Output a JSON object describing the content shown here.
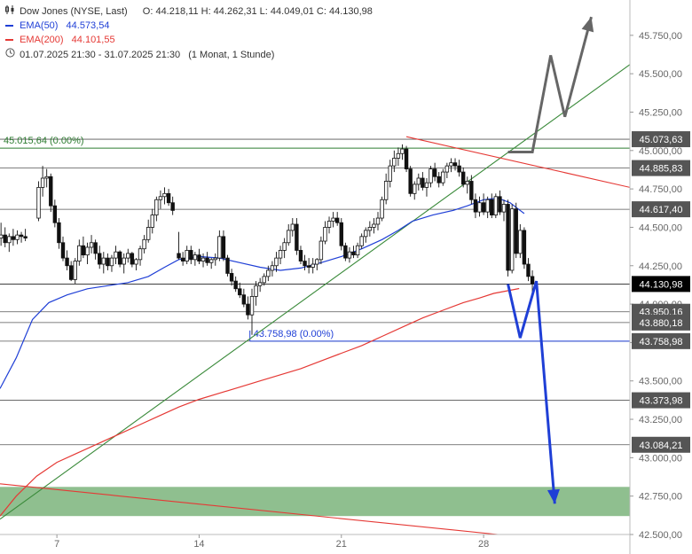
{
  "header": {
    "title": "Dow Jones (NYSE, Last)",
    "ohlc": "O: 44.218,11   H: 44.262,31   L: 44.049,01   C: 44.130,98",
    "ema50_label": "EMA(50)",
    "ema50_value": "44.573,54",
    "ema200_label": "EMA(200)",
    "ema200_value": "44.101,55",
    "range": "01.07.2025 21:30 - 31.07.2025 21:30",
    "interval": "(1 Monat, 1 Stunde)"
  },
  "chart_data": {
    "type": "candlestick",
    "ylim": [
      42500,
      45980
    ],
    "xlim_days": [
      4.2,
      35.2
    ],
    "x_ticks": [
      {
        "day": 7,
        "label": "7"
      },
      {
        "day": 14,
        "label": "14"
      },
      {
        "day": 21,
        "label": "21"
      },
      {
        "day": 28,
        "label": "28"
      }
    ],
    "y_ticks": [
      {
        "value": 42500,
        "label": "42.500,00"
      },
      {
        "value": 42750,
        "label": "42.750,00"
      },
      {
        "value": 43000,
        "label": "43.000,00"
      },
      {
        "value": 43250,
        "label": "43.250,00"
      },
      {
        "value": 43500,
        "label": "43.500,00"
      },
      {
        "value": 43750,
        "label": "43.750,00"
      },
      {
        "value": 44000,
        "label": "44.000,00"
      },
      {
        "value": 44250,
        "label": "44.250,00"
      },
      {
        "value": 44500,
        "label": "44.500,00"
      },
      {
        "value": 44750,
        "label": "44.750,00"
      },
      {
        "value": 45000,
        "label": "45.000,00"
      },
      {
        "value": 45250,
        "label": "45.250,00"
      },
      {
        "value": 45500,
        "label": "45.500,00"
      },
      {
        "value": 45750,
        "label": "45.750,00"
      }
    ],
    "levels": [
      {
        "value": 45073.63,
        "label": "45.073,63",
        "color": "#555555"
      },
      {
        "value": 44885.83,
        "label": "44.885,83",
        "color": "#555555"
      },
      {
        "value": 44617.4,
        "label": "44.617,40",
        "color": "#555555"
      },
      {
        "value": 44130.98,
        "label": "44.130,98",
        "color": "#000000",
        "current": true
      },
      {
        "value": 43950.16,
        "label": "43.950,16",
        "color": "#555555"
      },
      {
        "value": 43880.18,
        "label": "43.880,18",
        "color": "#555555"
      },
      {
        "value": 43758.98,
        "label": "43.758,98",
        "color": "#555555"
      },
      {
        "value": 43373.98,
        "label": "43.373,98",
        "color": "#555555"
      },
      {
        "value": 43084.21,
        "label": "43.084,21",
        "color": "#555555"
      }
    ],
    "annotations": [
      {
        "text": "45.015,64 (0.00%)",
        "value": 45015.64,
        "color": "#2e7d32",
        "day_start": 4.2
      },
      {
        "text": "43.758,98 (0.00%)",
        "value": 43758.98,
        "color": "#1f3fd6",
        "day_start": 16.5
      }
    ],
    "support_zone": {
      "low": 42620,
      "high": 42810,
      "color": "#8fbf8f"
    },
    "trendlines": [
      {
        "name": "uptrend",
        "color": "#3a8a3a",
        "points": [
          [
            4.2,
            42600
          ],
          [
            35.2,
            45560
          ]
        ]
      },
      {
        "name": "upper-downtrend",
        "color": "#e53935",
        "points": [
          [
            24.2,
            45090
          ],
          [
            35.2,
            44760
          ]
        ]
      },
      {
        "name": "lower-downtrend",
        "color": "#e53935",
        "points": [
          [
            4.2,
            42830
          ],
          [
            28.7,
            42500
          ]
        ]
      }
    ],
    "scenario_up": {
      "color": "#666666",
      "points": [
        [
          29.2,
          44990
        ],
        [
          30.4,
          44990
        ],
        [
          31.3,
          45620
        ],
        [
          32.0,
          45220
        ],
        [
          33.3,
          45870
        ]
      ]
    },
    "scenario_down": {
      "color": "#1f3fd6",
      "points": [
        [
          29.2,
          44130
        ],
        [
          29.8,
          43780
        ],
        [
          30.6,
          44150
        ],
        [
          31.5,
          42700
        ]
      ]
    },
    "ema50": [
      [
        4.2,
        43450
      ],
      [
        5.0,
        43650
      ],
      [
        5.8,
        43900
      ],
      [
        6.6,
        44010
      ],
      [
        7.5,
        44060
      ],
      [
        8.5,
        44100
      ],
      [
        9.5,
        44120
      ],
      [
        10.5,
        44140
      ],
      [
        11.5,
        44180
      ],
      [
        12.3,
        44240
      ],
      [
        13.0,
        44290
      ],
      [
        14.0,
        44310
      ],
      [
        15.0,
        44300
      ],
      [
        16.0,
        44270
      ],
      [
        17.0,
        44240
      ],
      [
        18.0,
        44220
      ],
      [
        19.0,
        44235
      ],
      [
        20.0,
        44270
      ],
      [
        21.0,
        44310
      ],
      [
        22.0,
        44360
      ],
      [
        23.0,
        44420
      ],
      [
        23.8,
        44480
      ],
      [
        24.5,
        44540
      ],
      [
        25.5,
        44580
      ],
      [
        26.5,
        44610
      ],
      [
        27.2,
        44640
      ],
      [
        28.0,
        44680
      ],
      [
        28.7,
        44690
      ],
      [
        29.3,
        44660
      ],
      [
        29.7,
        44620
      ],
      [
        30.0,
        44590
      ]
    ],
    "ema200": [
      [
        4.2,
        42620
      ],
      [
        5.0,
        42750
      ],
      [
        6.0,
        42880
      ],
      [
        7.0,
        42970
      ],
      [
        8.0,
        43030
      ],
      [
        9.0,
        43090
      ],
      [
        10.0,
        43150
      ],
      [
        11.0,
        43210
      ],
      [
        12.0,
        43270
      ],
      [
        13.0,
        43330
      ],
      [
        14.0,
        43380
      ],
      [
        15.0,
        43420
      ],
      [
        16.0,
        43460
      ],
      [
        17.0,
        43500
      ],
      [
        18.0,
        43540
      ],
      [
        19.0,
        43580
      ],
      [
        20.0,
        43630
      ],
      [
        21.0,
        43680
      ],
      [
        22.0,
        43730
      ],
      [
        23.0,
        43790
      ],
      [
        24.0,
        43850
      ],
      [
        25.0,
        43910
      ],
      [
        26.0,
        43960
      ],
      [
        27.0,
        44010
      ],
      [
        27.8,
        44040
      ],
      [
        28.5,
        44070
      ],
      [
        29.3,
        44090
      ],
      [
        29.75,
        44101.55
      ]
    ],
    "candles": [
      [
        4.25,
        44430,
        44530,
        44380,
        44450
      ],
      [
        4.45,
        44450,
        44500,
        44370,
        44400
      ],
      [
        4.65,
        44400,
        44460,
        44340,
        44440
      ],
      [
        4.85,
        44440,
        44490,
        44380,
        44420
      ],
      [
        5.05,
        44420,
        44480,
        44390,
        44450
      ],
      [
        5.25,
        44450,
        44470,
        44400,
        44440
      ],
      [
        5.45,
        44440,
        44490,
        44410,
        44430
      ],
      [
        6.1,
        44560,
        44800,
        44540,
        44760
      ],
      [
        6.3,
        44760,
        44900,
        44700,
        44820
      ],
      [
        6.5,
        44820,
        44880,
        44760,
        44830
      ],
      [
        6.7,
        44830,
        44850,
        44600,
        44640
      ],
      [
        6.9,
        44640,
        44680,
        44500,
        44530
      ],
      [
        7.1,
        44530,
        44560,
        44360,
        44400
      ],
      [
        7.3,
        44400,
        44440,
        44280,
        44300
      ],
      [
        7.5,
        44300,
        44350,
        44220,
        44250
      ],
      [
        7.7,
        44250,
        44280,
        44150,
        44160
      ],
      [
        7.9,
        44160,
        44300,
        44130,
        44280
      ],
      [
        8.1,
        44280,
        44420,
        44250,
        44380
      ],
      [
        8.3,
        44380,
        44440,
        44300,
        44320
      ],
      [
        8.5,
        44320,
        44400,
        44260,
        44370
      ],
      [
        8.7,
        44370,
        44450,
        44330,
        44400
      ],
      [
        8.9,
        44400,
        44420,
        44290,
        44330
      ],
      [
        9.1,
        44330,
        44380,
        44230,
        44260
      ],
      [
        9.3,
        44260,
        44340,
        44200,
        44300
      ],
      [
        9.5,
        44300,
        44330,
        44220,
        44250
      ],
      [
        9.7,
        44250,
        44320,
        44210,
        44300
      ],
      [
        9.9,
        44300,
        44380,
        44260,
        44340
      ],
      [
        10.1,
        44340,
        44350,
        44240,
        44260
      ],
      [
        10.3,
        44260,
        44330,
        44200,
        44300
      ],
      [
        10.5,
        44300,
        44360,
        44270,
        44330
      ],
      [
        10.7,
        44330,
        44340,
        44240,
        44260
      ],
      [
        10.9,
        44260,
        44300,
        44220,
        44290
      ],
      [
        11.1,
        44290,
        44380,
        44250,
        44360
      ],
      [
        11.3,
        44360,
        44450,
        44330,
        44420
      ],
      [
        11.5,
        44420,
        44550,
        44400,
        44500
      ],
      [
        11.7,
        44500,
        44620,
        44460,
        44580
      ],
      [
        11.9,
        44580,
        44700,
        44540,
        44680
      ],
      [
        12.1,
        44680,
        44740,
        44620,
        44700
      ],
      [
        12.3,
        44700,
        44760,
        44650,
        44720
      ],
      [
        12.5,
        44720,
        44750,
        44640,
        44660
      ],
      [
        12.7,
        44660,
        44700,
        44580,
        44610
      ],
      [
        13.0,
        44330,
        44470,
        44290,
        44300
      ],
      [
        13.2,
        44300,
        44340,
        44250,
        44280
      ],
      [
        13.4,
        44280,
        44380,
        44260,
        44350
      ],
      [
        13.6,
        44350,
        44380,
        44260,
        44290
      ],
      [
        13.8,
        44290,
        44340,
        44250,
        44320
      ],
      [
        14.0,
        44320,
        44360,
        44260,
        44280
      ],
      [
        14.2,
        44280,
        44330,
        44240,
        44300
      ],
      [
        14.4,
        44300,
        44340,
        44250,
        44270
      ],
      [
        14.6,
        44270,
        44300,
        44230,
        44290
      ],
      [
        14.8,
        44290,
        44330,
        44250,
        44300
      ],
      [
        15.0,
        44300,
        44480,
        44280,
        44440
      ],
      [
        15.2,
        44440,
        44480,
        44280,
        44300
      ],
      [
        15.4,
        44300,
        44320,
        44180,
        44200
      ],
      [
        15.6,
        44200,
        44230,
        44120,
        44150
      ],
      [
        15.8,
        44150,
        44180,
        44080,
        44100
      ],
      [
        16.0,
        44100,
        44140,
        44040,
        44060
      ],
      [
        16.2,
        44060,
        44100,
        43980,
        44000
      ],
      [
        16.4,
        44000,
        44050,
        43900,
        43930
      ],
      [
        16.6,
        43930,
        44100,
        43800,
        44050
      ],
      [
        16.8,
        44050,
        44150,
        43990,
        44120
      ],
      [
        17.0,
        44120,
        44170,
        44080,
        44140
      ],
      [
        17.2,
        44140,
        44200,
        44120,
        44180
      ],
      [
        17.4,
        44180,
        44250,
        44150,
        44220
      ],
      [
        17.6,
        44220,
        44280,
        44180,
        44250
      ],
      [
        17.8,
        44250,
        44340,
        44210,
        44300
      ],
      [
        18.0,
        44300,
        44380,
        44260,
        44350
      ],
      [
        18.2,
        44350,
        44430,
        44300,
        44400
      ],
      [
        18.4,
        44400,
        44520,
        44380,
        44480
      ],
      [
        18.6,
        44480,
        44560,
        44440,
        44520
      ],
      [
        18.8,
        44520,
        44560,
        44320,
        44350
      ],
      [
        19.0,
        44350,
        44380,
        44260,
        44280
      ],
      [
        19.2,
        44280,
        44320,
        44220,
        44250
      ],
      [
        19.4,
        44250,
        44300,
        44200,
        44240
      ],
      [
        19.6,
        44240,
        44300,
        44200,
        44260
      ],
      [
        19.8,
        44260,
        44300,
        44220,
        44290
      ],
      [
        20.0,
        44290,
        44440,
        44260,
        44410
      ],
      [
        20.2,
        44410,
        44540,
        44390,
        44500
      ],
      [
        20.4,
        44500,
        44570,
        44460,
        44540
      ],
      [
        20.6,
        44540,
        44600,
        44500,
        44560
      ],
      [
        20.8,
        44560,
        44600,
        44510,
        44530
      ],
      [
        21.0,
        44530,
        44560,
        44350,
        44380
      ],
      [
        21.2,
        44380,
        44400,
        44280,
        44300
      ],
      [
        21.4,
        44300,
        44370,
        44270,
        44340
      ],
      [
        21.6,
        44340,
        44380,
        44300,
        44320
      ],
      [
        21.8,
        44320,
        44400,
        44300,
        44380
      ],
      [
        22.0,
        44380,
        44460,
        44360,
        44440
      ],
      [
        22.2,
        44440,
        44500,
        44400,
        44480
      ],
      [
        22.4,
        44480,
        44540,
        44440,
        44500
      ],
      [
        22.6,
        44500,
        44560,
        44460,
        44520
      ],
      [
        22.8,
        44520,
        44600,
        44480,
        44560
      ],
      [
        23.0,
        44560,
        44700,
        44540,
        44680
      ],
      [
        23.2,
        44680,
        44850,
        44650,
        44800
      ],
      [
        23.4,
        44800,
        44940,
        44760,
        44900
      ],
      [
        23.6,
        44900,
        45000,
        44860,
        44950
      ],
      [
        23.8,
        44950,
        45020,
        44900,
        44980
      ],
      [
        24.0,
        44980,
        45040,
        44940,
        45010
      ],
      [
        24.2,
        45010,
        45030,
        44860,
        44880
      ],
      [
        24.4,
        44880,
        44900,
        44700,
        44720
      ],
      [
        24.6,
        44720,
        44800,
        44680,
        44780
      ],
      [
        24.8,
        44780,
        44850,
        44740,
        44820
      ],
      [
        25.0,
        44820,
        44860,
        44740,
        44760
      ],
      [
        25.2,
        44760,
        44820,
        44700,
        44790
      ],
      [
        25.4,
        44790,
        44900,
        44760,
        44880
      ],
      [
        25.6,
        44880,
        44920,
        44800,
        44830
      ],
      [
        25.8,
        44830,
        44860,
        44760,
        44790
      ],
      [
        26.0,
        44790,
        44880,
        44770,
        44860
      ],
      [
        26.2,
        44860,
        44920,
        44820,
        44900
      ],
      [
        26.4,
        44900,
        44950,
        44860,
        44920
      ],
      [
        26.6,
        44920,
        44950,
        44870,
        44900
      ],
      [
        26.8,
        44900,
        44940,
        44830,
        44860
      ],
      [
        27.0,
        44860,
        44890,
        44760,
        44780
      ],
      [
        27.2,
        44780,
        44830,
        44720,
        44800
      ],
      [
        27.4,
        44800,
        44840,
        44650,
        44680
      ],
      [
        27.6,
        44680,
        44720,
        44560,
        44600
      ],
      [
        27.8,
        44600,
        44700,
        44570,
        44660
      ],
      [
        28.0,
        44660,
        44720,
        44580,
        44600
      ],
      [
        28.2,
        44600,
        44700,
        44560,
        44680
      ],
      [
        28.4,
        44680,
        44720,
        44560,
        44580
      ],
      [
        28.6,
        44580,
        44720,
        44560,
        44700
      ],
      [
        28.8,
        44700,
        44740,
        44580,
        44600
      ],
      [
        29.0,
        44600,
        44680,
        44540,
        44650
      ],
      [
        29.2,
        44650,
        44680,
        44180,
        44220
      ],
      [
        29.4,
        44220,
        44650,
        44200,
        44620
      ],
      [
        29.6,
        44620,
        44660,
        44300,
        44330
      ],
      [
        29.8,
        44330,
        44520,
        44300,
        44480
      ],
      [
        30.0,
        44480,
        44500,
        44230,
        44260
      ],
      [
        30.2,
        44260,
        44300,
        44150,
        44180
      ],
      [
        30.4,
        44180,
        44220,
        44049,
        44130.98
      ]
    ]
  }
}
